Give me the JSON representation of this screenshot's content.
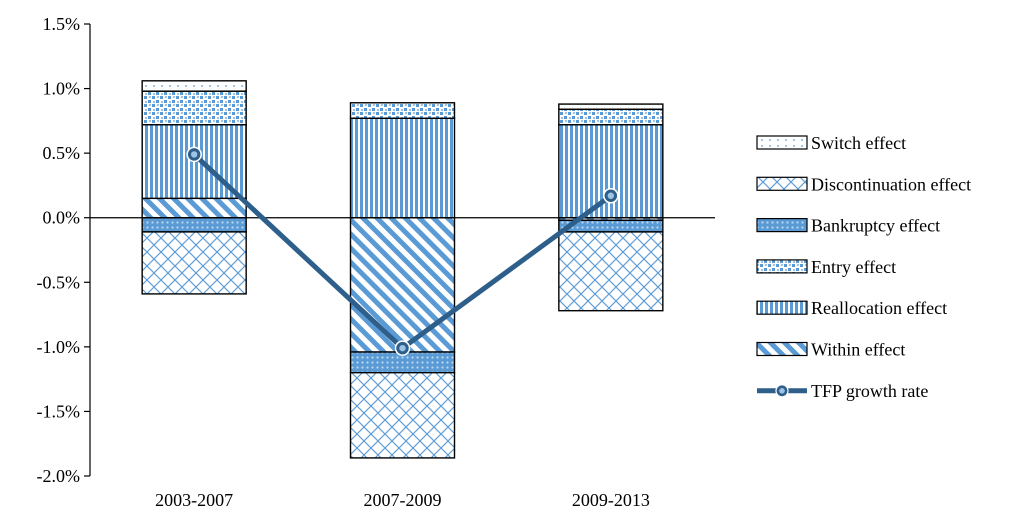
{
  "chart_data": {
    "type": "bar",
    "stacked": true,
    "categories": [
      "2003-2007",
      "2007-2009",
      "2009-2013"
    ],
    "ylim": [
      -2.0,
      1.5
    ],
    "yticks": [
      "1.5%",
      "1.0%",
      "0.5%",
      "0.0%",
      "-0.5%",
      "-1.0%",
      "-1.5%",
      "-2.0%"
    ],
    "ytick_values": [
      1.5,
      1.0,
      0.5,
      0.0,
      -0.5,
      -1.0,
      -1.5,
      -2.0
    ],
    "legend_position": "right",
    "series": [
      {
        "name": "Switch effect",
        "pattern": "dots-sparse",
        "color": "#9dc3e6",
        "values": [
          0.08,
          0.0,
          0.04
        ]
      },
      {
        "name": "Discontinuation effect",
        "pattern": "diamond",
        "color": "#5b9bd5",
        "values": [
          -0.48,
          -0.66,
          -0.61
        ]
      },
      {
        "name": "Bankruptcy effect",
        "pattern": "dots-dense",
        "color": "#5b9bd5",
        "values": [
          -0.11,
          -0.16,
          -0.09
        ]
      },
      {
        "name": "Entry effect",
        "pattern": "confetti",
        "color": "#5b9bd5",
        "values": [
          0.26,
          0.12,
          0.12
        ]
      },
      {
        "name": "Reallocation effect",
        "pattern": "vertical",
        "color": "#5b9bd5",
        "values": [
          0.57,
          0.77,
          0.72
        ]
      },
      {
        "name": "Within effect",
        "pattern": "diagonal",
        "color": "#5b9bd5",
        "values": [
          0.15,
          -1.04,
          -0.02
        ]
      }
    ],
    "line_series": {
      "name": "TFP growth rate",
      "color": "#2e5f8a",
      "values": [
        0.49,
        -1.01,
        0.17
      ]
    }
  }
}
